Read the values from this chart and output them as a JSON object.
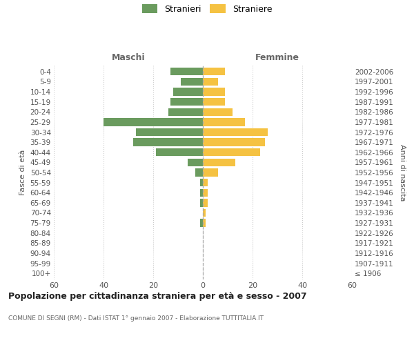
{
  "age_groups": [
    "100+",
    "95-99",
    "90-94",
    "85-89",
    "80-84",
    "75-79",
    "70-74",
    "65-69",
    "60-64",
    "55-59",
    "50-54",
    "45-49",
    "40-44",
    "35-39",
    "30-34",
    "25-29",
    "20-24",
    "15-19",
    "10-14",
    "5-9",
    "0-4"
  ],
  "birth_years": [
    "≤ 1906",
    "1907-1911",
    "1912-1916",
    "1917-1921",
    "1922-1926",
    "1927-1931",
    "1932-1936",
    "1937-1941",
    "1942-1946",
    "1947-1951",
    "1952-1956",
    "1957-1961",
    "1962-1966",
    "1967-1971",
    "1972-1976",
    "1977-1981",
    "1982-1986",
    "1987-1991",
    "1992-1996",
    "1997-2001",
    "2002-2006"
  ],
  "maschi": [
    0,
    0,
    0,
    0,
    0,
    1,
    0,
    1,
    1,
    1,
    3,
    6,
    19,
    28,
    27,
    40,
    14,
    13,
    12,
    9,
    13
  ],
  "femmine": [
    0,
    0,
    0,
    0,
    0,
    1,
    1,
    2,
    2,
    2,
    6,
    13,
    23,
    25,
    26,
    17,
    12,
    9,
    9,
    6,
    9
  ],
  "color_maschi": "#6a9b5e",
  "color_femmine": "#f5c242",
  "title_main": "Popolazione per cittadinanza straniera per età e sesso - 2007",
  "title_sub": "COMUNE DI SEGNI (RM) - Dati ISTAT 1° gennaio 2007 - Elaborazione TUTTITALIA.IT",
  "legend_maschi": "Stranieri",
  "legend_femmine": "Straniere",
  "xlabel_left": "Maschi",
  "xlabel_right": "Femmine",
  "ylabel_left": "Fasce di età",
  "ylabel_right": "Anni di nascita",
  "xlim": 60,
  "background_color": "#ffffff",
  "grid_color": "#cccccc"
}
